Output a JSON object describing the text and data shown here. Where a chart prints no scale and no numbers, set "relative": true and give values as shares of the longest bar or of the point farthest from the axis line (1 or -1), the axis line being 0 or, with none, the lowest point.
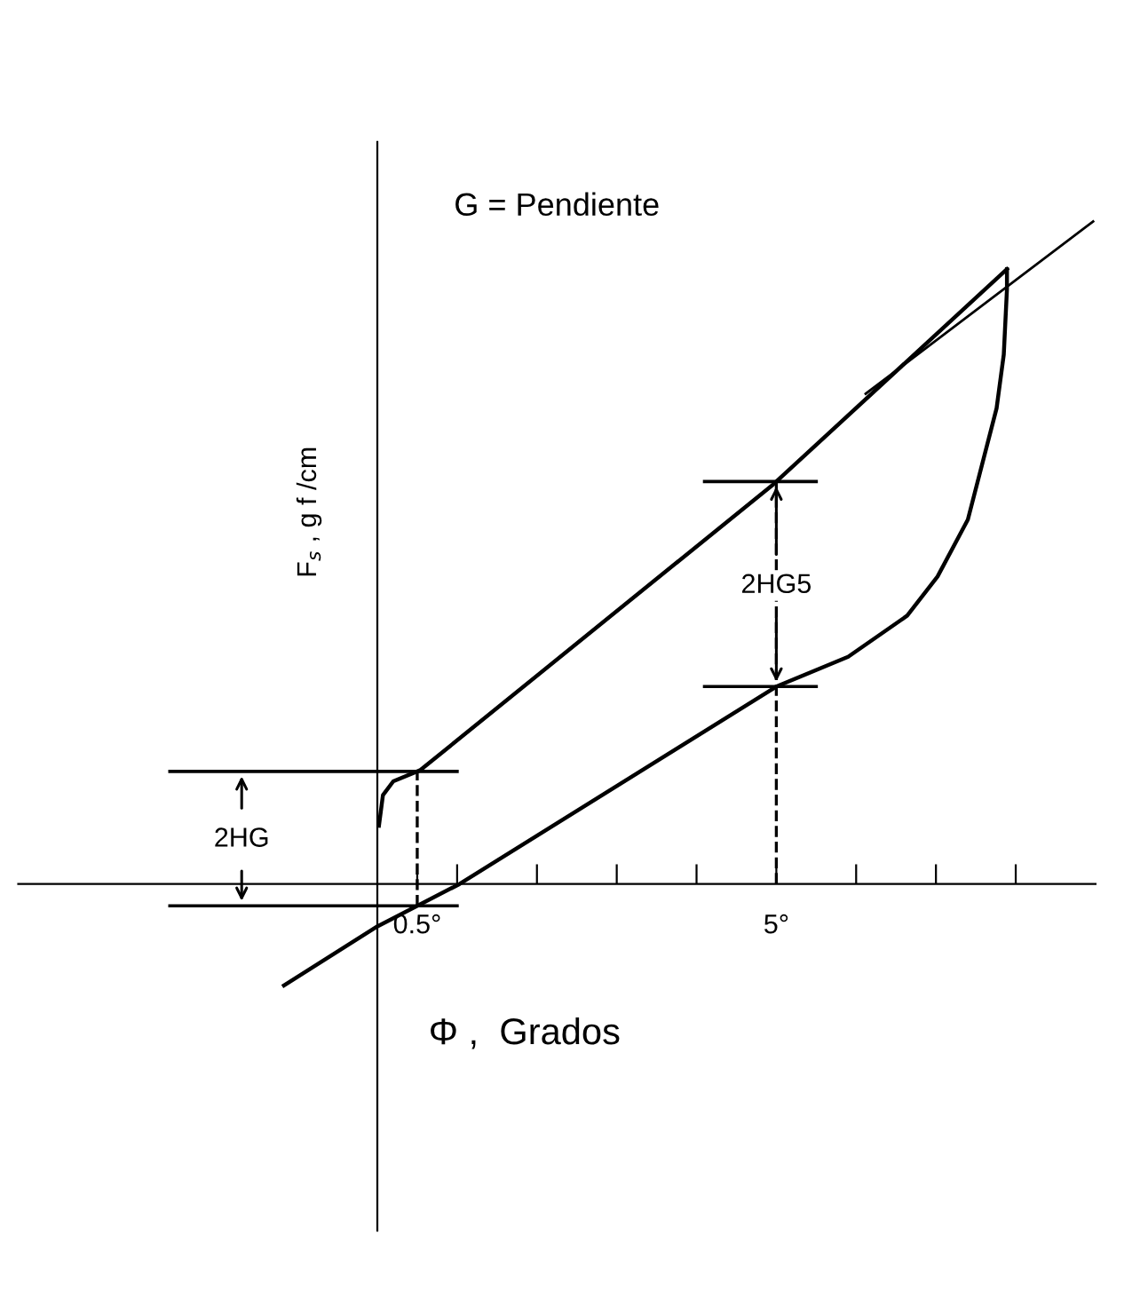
{
  "chart_data": {
    "type": "line",
    "relative": true,
    "xlabel": "Φ ,  Grados",
    "ylabel": "F$_{s}$ , g f /cm",
    "annotations": [
      "G = Pendiente",
      {
        "text": "2HG",
        "x": -1.7,
        "y": 0.067
      },
      {
        "text": "2HG5",
        "x": 5,
        "y": 0.45
      }
    ],
    "series": [
      {
        "color": "#000000",
        "x": [
          0.02,
          0.07,
          0.2,
          0.54,
          4.96,
          7.89
        ],
        "values": [
          0.088,
          0.134,
          0.155,
          0.172,
          0.603,
          0.928
        ]
      },
      {
        "color": "#000000",
        "x": [
          7.89,
          7.89,
          7.85,
          7.76,
          7.4,
          7.02,
          6.64,
          5.9,
          5.0,
          1.03,
          0.0,
          -1.17
        ],
        "values": [
          0.928,
          0.898,
          0.799,
          0.718,
          0.55,
          0.464,
          0.405,
          0.343,
          0.298,
          0.0,
          -0.064,
          -0.153
        ]
      },
      {
        "color": "#000000",
        "x": [
          6.12,
          8.97
        ],
        "values": [
          0.74,
          1.0
        ]
      }
    ],
    "xlim": [
      -4.5,
      9.0
    ],
    "xticks": [
      {
        "value": 0.5,
        "label": "0.5°"
      },
      {
        "value": 1,
        "label": null
      },
      {
        "value": 2,
        "label": null
      },
      {
        "value": 3,
        "label": null
      },
      {
        "value": 4,
        "label": null
      },
      {
        "value": 5,
        "label": "5°"
      },
      {
        "value": 6,
        "label": null
      },
      {
        "value": 7,
        "label": null
      },
      {
        "value": 8,
        "label": null
      }
    ],
    "ref_lines": [
      {
        "axis": "x",
        "value": 0.5,
        "line_style": "dashed"
      },
      {
        "axis": "x",
        "value": 5,
        "line_style": "dashed"
      }
    ],
    "tick_labels": "x",
    "grid": false,
    "marker": "none",
    "line_style": "solid",
    "legend": false
  }
}
